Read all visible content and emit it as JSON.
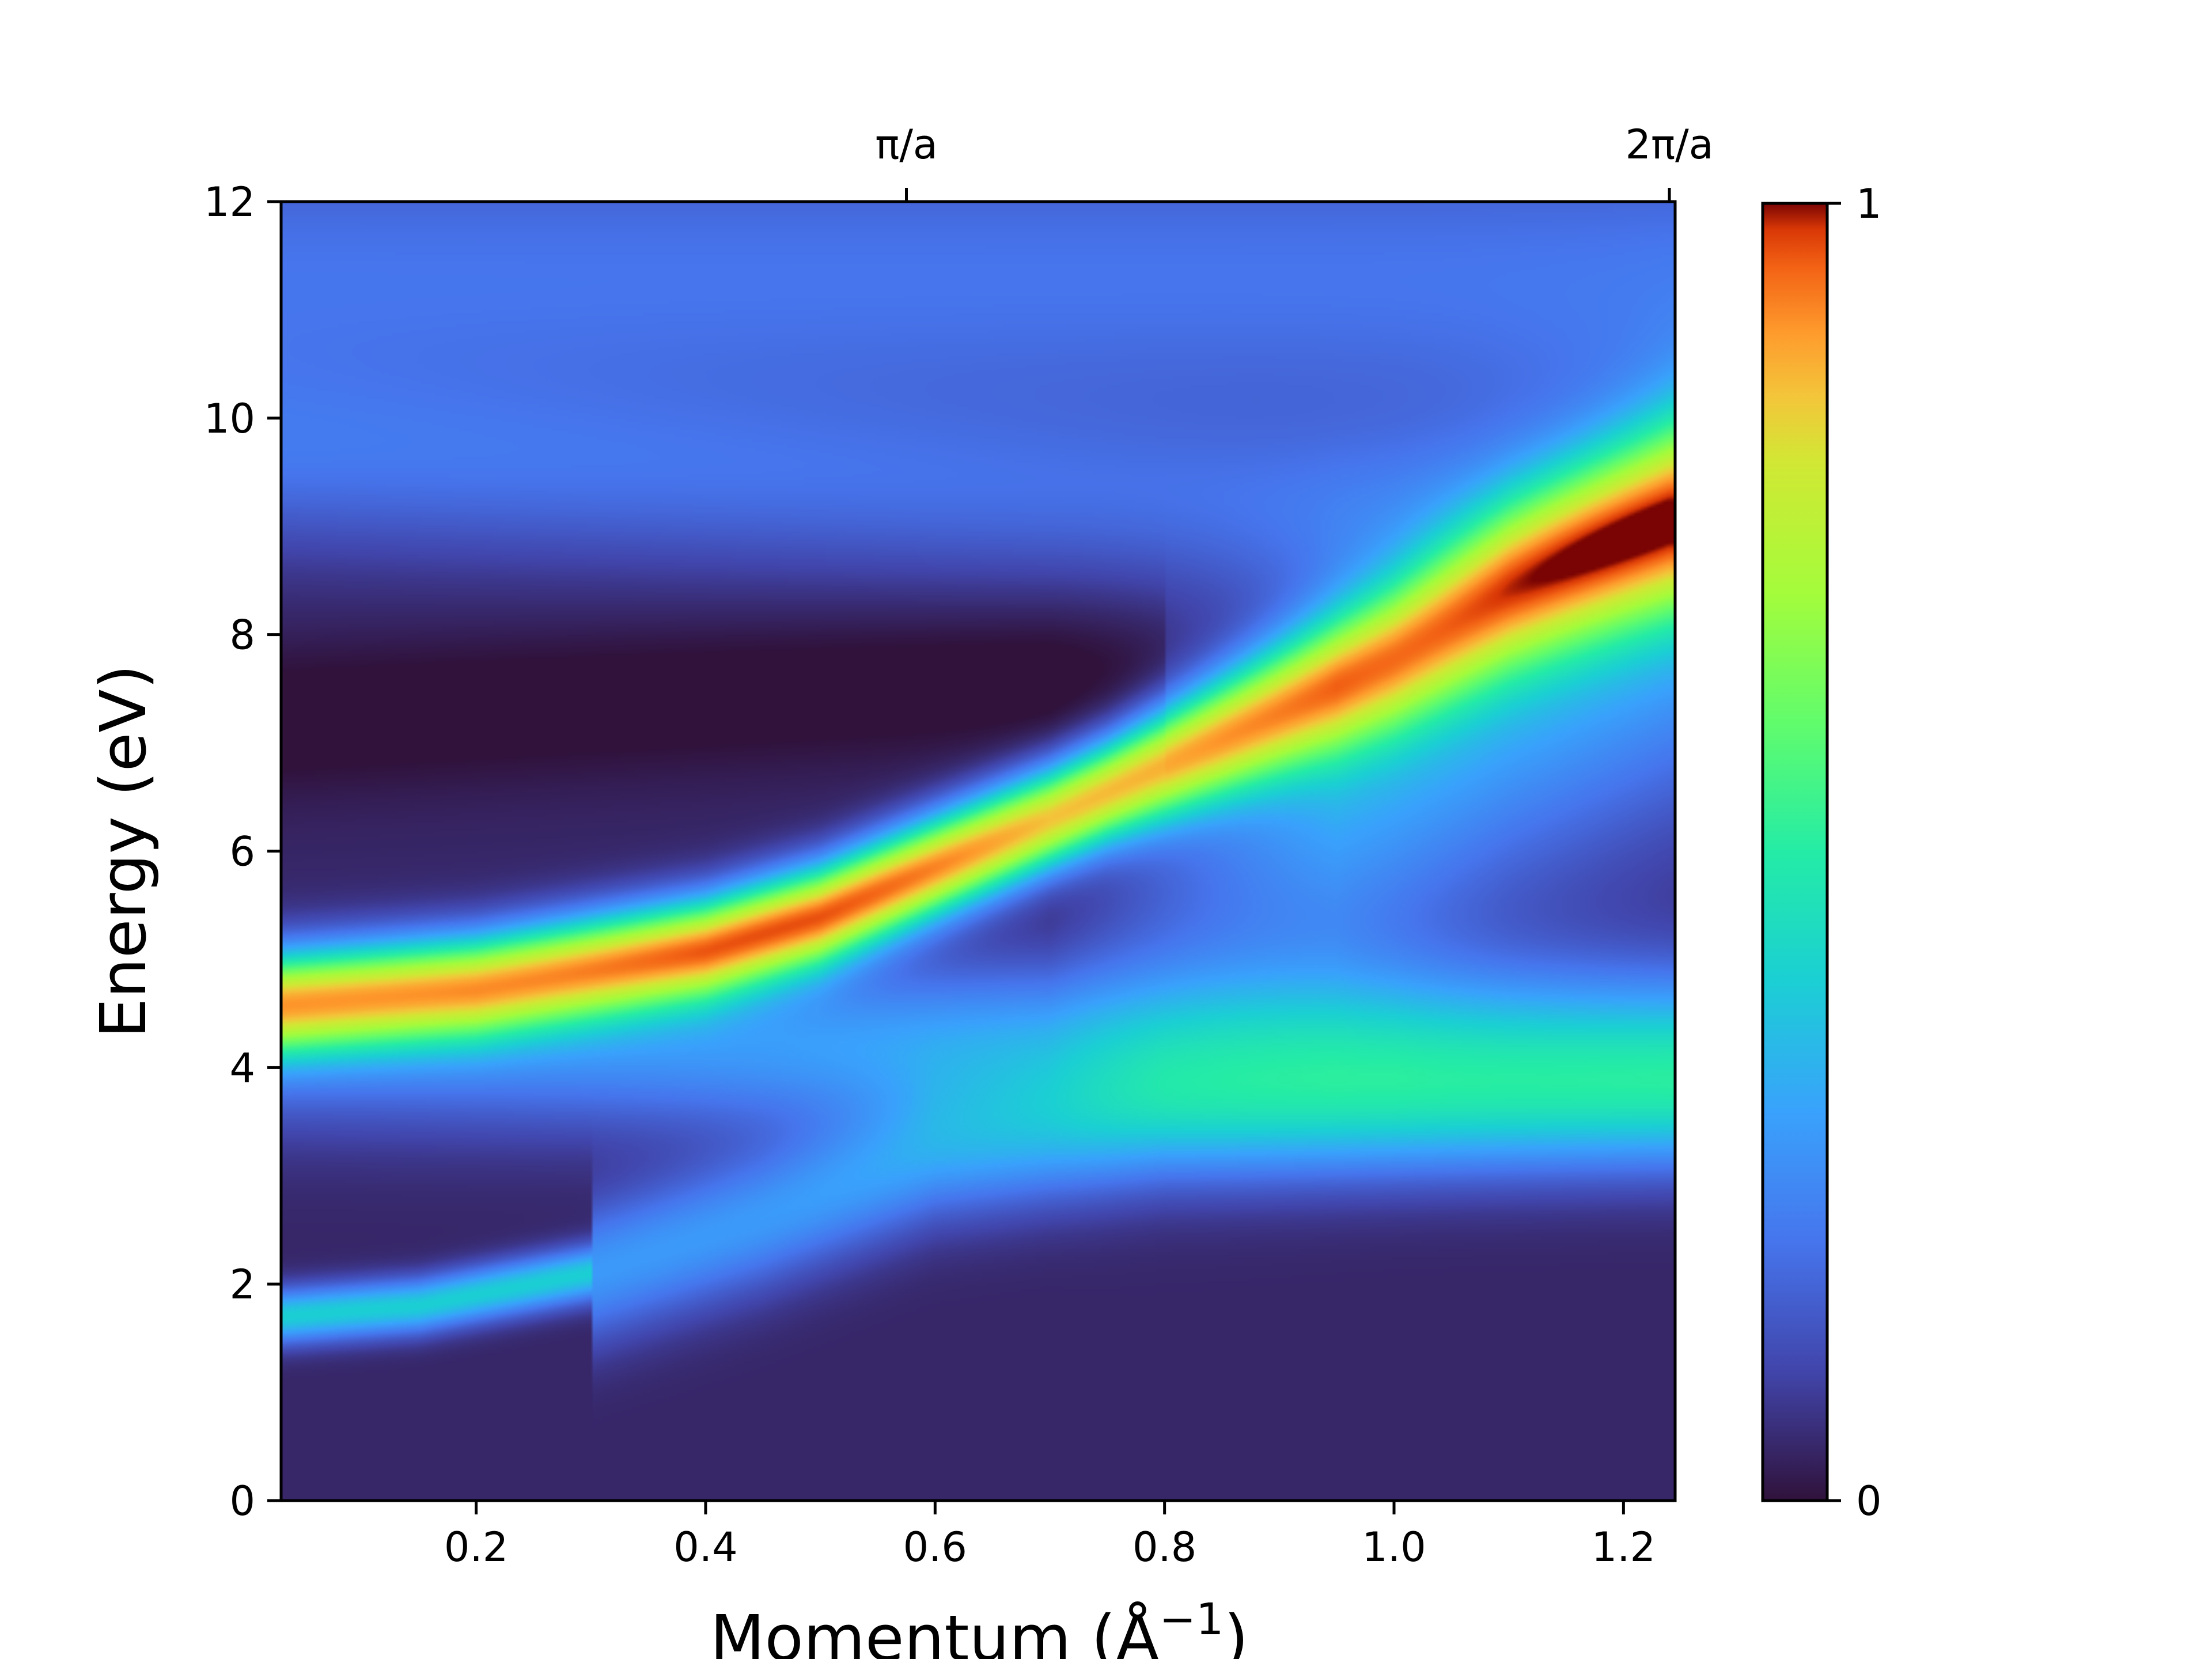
{
  "chart_data": {
    "type": "heatmap",
    "title": "",
    "xlabel": "Momentum (Å",
    "xlabel_sup": "−1",
    "xlabel_close": ")",
    "ylabel": "Energy (eV)",
    "xlim": [
      0.03,
      1.245
    ],
    "ylim": [
      0,
      12
    ],
    "x_ticks": [
      {
        "value": 0.2,
        "label": "0.2"
      },
      {
        "value": 0.4,
        "label": "0.4"
      },
      {
        "value": 0.6,
        "label": "0.6"
      },
      {
        "value": 0.8,
        "label": "0.8"
      },
      {
        "value": 1.0,
        "label": "1.0"
      },
      {
        "value": 1.2,
        "label": "1.2"
      }
    ],
    "y_ticks": [
      {
        "value": 0,
        "label": "0"
      },
      {
        "value": 2,
        "label": "2"
      },
      {
        "value": 4,
        "label": "4"
      },
      {
        "value": 6,
        "label": "6"
      },
      {
        "value": 8,
        "label": "8"
      },
      {
        "value": 10,
        "label": "10"
      },
      {
        "value": 12,
        "label": "12"
      }
    ],
    "top_ticks": [
      {
        "value": 0.575,
        "label": "π/a"
      },
      {
        "value": 1.24,
        "label": "2π/a"
      }
    ],
    "colorbar": {
      "colormap": "turbo",
      "min": 0,
      "max": 1,
      "tick_labels": [
        {
          "value": 0,
          "label": "0"
        },
        {
          "value": 1,
          "label": "1"
        }
      ]
    },
    "features": [
      {
        "kind": "dispersive band",
        "points": [
          [
            0.03,
            4.6
          ],
          [
            0.2,
            4.75
          ],
          [
            0.4,
            5.1
          ],
          [
            0.5,
            5.4
          ],
          [
            0.6,
            5.85
          ],
          [
            0.7,
            6.3
          ],
          [
            0.8,
            6.8
          ],
          [
            0.9,
            7.3
          ],
          [
            1.0,
            7.8
          ],
          [
            1.1,
            8.4
          ],
          [
            1.24,
            9.1
          ]
        ],
        "peak_intensity": 0.8
      },
      {
        "kind": "flat band",
        "energy": 4.2,
        "intensity": 0.3
      },
      {
        "kind": "low branch",
        "points": [
          [
            0.03,
            1.7
          ],
          [
            0.15,
            1.8
          ],
          [
            0.3,
            2.1
          ],
          [
            0.45,
            2.6
          ],
          [
            0.6,
            3.2
          ],
          [
            0.8,
            3.5
          ],
          [
            1.24,
            3.6
          ]
        ],
        "intensity": 0.35
      },
      {
        "kind": "upper continuum",
        "energy_range": [
          9,
          12
        ],
        "intensity": 0.18
      }
    ]
  }
}
